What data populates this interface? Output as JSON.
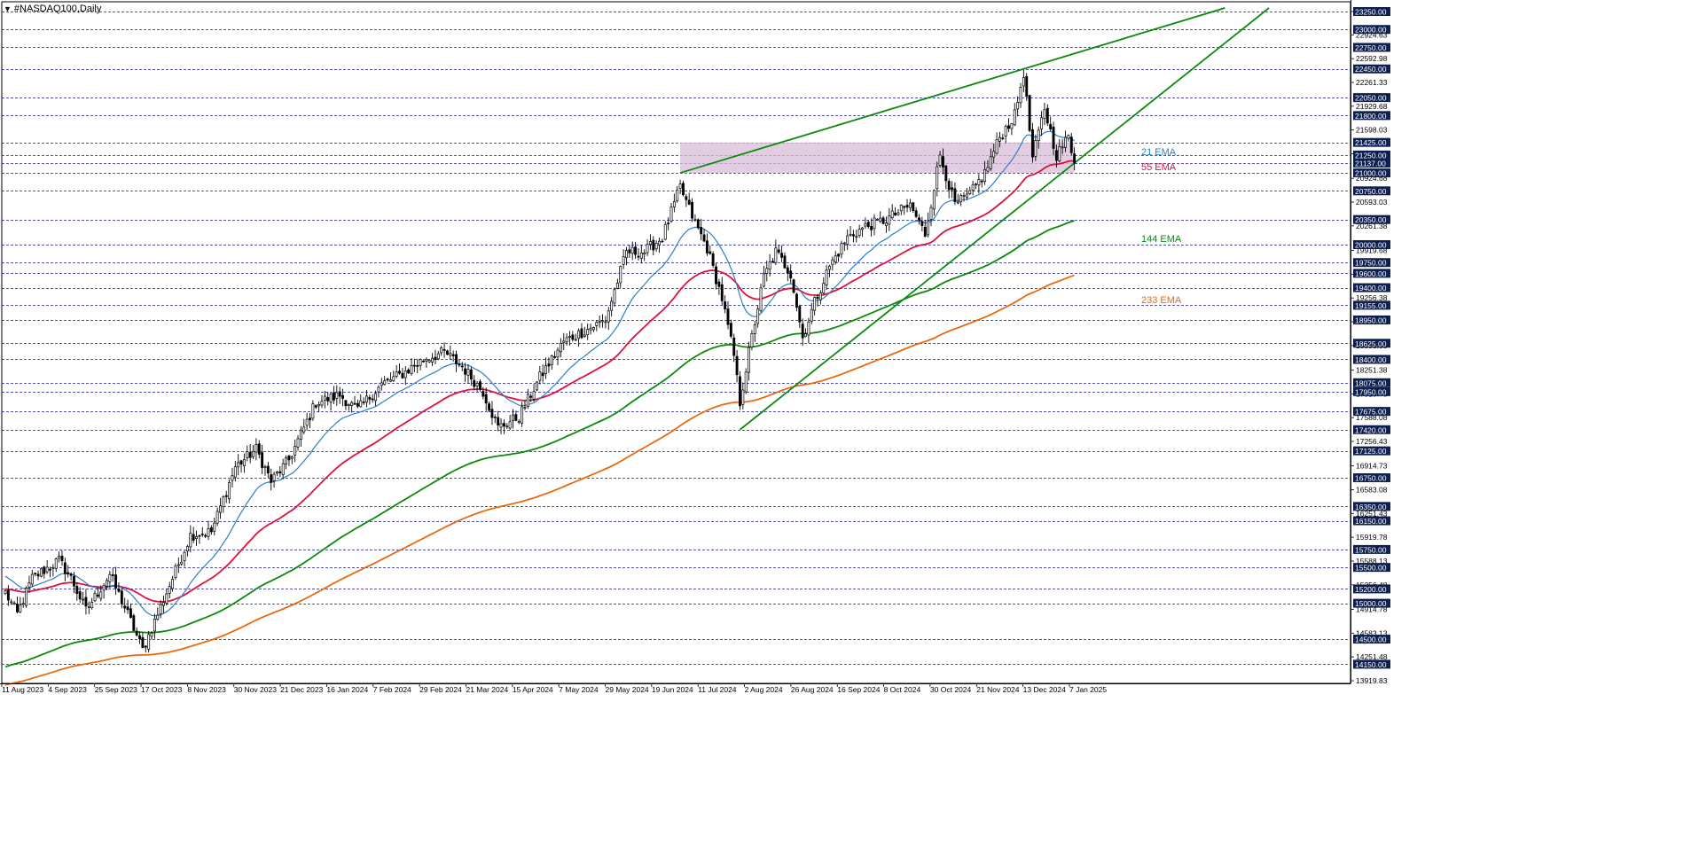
{
  "window": {
    "symbol_title": "#NASDAQ100,Daily"
  },
  "colors": {
    "background": "#ffffff",
    "candle": "#000000",
    "grid": "#1a1a8c",
    "ema21": "#2f7ec7",
    "ema55": "#e0103c",
    "ema144": "#0a8a0a",
    "ema233": "#e86a10",
    "trendline": "#0a8a0a",
    "zone": "#d8bcd8",
    "price_tag_bg": "#0d1f4f",
    "price_tag_text": "#ffffff"
  },
  "chart_data": {
    "type": "candlestick",
    "title": "#NASDAQ100,Daily",
    "ylim": [
      13919.83,
      23250
    ],
    "x_tick_labels": [
      "11 Aug 2023",
      "4 Sep 2023",
      "25 Sep 2023",
      "17 Oct 2023",
      "8 Nov 2023",
      "30 Nov 2023",
      "21 Dec 2023",
      "16 Jan 2024",
      "7 Feb 2024",
      "29 Feb 2024",
      "21 Mar 2024",
      "15 Apr 2024",
      "7 May 2024",
      "29 May 2024",
      "19 Jun 2024",
      "11 Jul 2024",
      "2 Aug 2024",
      "26 Aug 2024",
      "16 Sep 2024",
      "8 Oct 2024",
      "30 Oct 2024",
      "21 Nov 2024",
      "13 Dec 2024",
      "7 Jan 2025"
    ],
    "price_scale_labels": [
      23250.0,
      22924.63,
      22592.98,
      22261.33,
      21929.68,
      21598.03,
      21266.38,
      20924.68,
      20593.03,
      20261.38,
      19919.68,
      19588.03,
      19256.38,
      18924.73,
      18593.08,
      18251.38,
      17919.73,
      17588.08,
      17256.43,
      16914.73,
      16583.08,
      16251.43,
      15919.78,
      15588.13,
      15256.48,
      14914.78,
      14583.13,
      14251.48,
      13919.83
    ],
    "levels": [
      23250.0,
      23000.0,
      22750.0,
      22450.0,
      22050.0,
      21800.0,
      21425.0,
      21250.0,
      21137.0,
      21000.0,
      20750.0,
      20350.0,
      20000.0,
      19750.0,
      19600.0,
      19400.0,
      19155.0,
      18950.0,
      18625.0,
      18400.0,
      18075.0,
      17950.0,
      17675.0,
      17420.0,
      17125.0,
      16750.0,
      16350.0,
      16150.0,
      15750.0,
      15500.0,
      15200.0,
      15000.0,
      14500.0,
      14150.0
    ],
    "price_waypoints": [
      {
        "i": 0,
        "p": 15150
      },
      {
        "i": 4,
        "p": 14850
      },
      {
        "i": 9,
        "p": 15350
      },
      {
        "i": 18,
        "p": 15600
      },
      {
        "i": 22,
        "p": 15350
      },
      {
        "i": 27,
        "p": 14900
      },
      {
        "i": 35,
        "p": 15400
      },
      {
        "i": 41,
        "p": 14850
      },
      {
        "i": 46,
        "p": 14350
      },
      {
        "i": 50,
        "p": 14750
      },
      {
        "i": 55,
        "p": 15250
      },
      {
        "i": 62,
        "p": 15950
      },
      {
        "i": 69,
        "p": 16000
      },
      {
        "i": 77,
        "p": 16900
      },
      {
        "i": 84,
        "p": 17150
      },
      {
        "i": 89,
        "p": 16700
      },
      {
        "i": 95,
        "p": 17000
      },
      {
        "i": 104,
        "p": 17800
      },
      {
        "i": 112,
        "p": 17900
      },
      {
        "i": 118,
        "p": 17700
      },
      {
        "i": 126,
        "p": 18050
      },
      {
        "i": 133,
        "p": 18200
      },
      {
        "i": 140,
        "p": 18400
      },
      {
        "i": 147,
        "p": 18500
      },
      {
        "i": 153,
        "p": 18300
      },
      {
        "i": 160,
        "p": 17950
      },
      {
        "i": 165,
        "p": 17450
      },
      {
        "i": 172,
        "p": 17600
      },
      {
        "i": 179,
        "p": 18150
      },
      {
        "i": 187,
        "p": 18650
      },
      {
        "i": 194,
        "p": 18800
      },
      {
        "i": 201,
        "p": 18950
      },
      {
        "i": 208,
        "p": 19900
      },
      {
        "i": 214,
        "p": 19900
      },
      {
        "i": 220,
        "p": 20100
      },
      {
        "i": 226,
        "p": 20800
      },
      {
        "i": 230,
        "p": 20400
      },
      {
        "i": 235,
        "p": 19950
      },
      {
        "i": 240,
        "p": 19250
      },
      {
        "i": 244,
        "p": 18450
      },
      {
        "i": 246,
        "p": 17800
      },
      {
        "i": 249,
        "p": 18500
      },
      {
        "i": 254,
        "p": 19550
      },
      {
        "i": 258,
        "p": 19900
      },
      {
        "i": 263,
        "p": 19600
      },
      {
        "i": 267,
        "p": 18700
      },
      {
        "i": 271,
        "p": 19200
      },
      {
        "i": 276,
        "p": 19700
      },
      {
        "i": 282,
        "p": 20100
      },
      {
        "i": 288,
        "p": 20250
      },
      {
        "i": 295,
        "p": 20350
      },
      {
        "i": 303,
        "p": 20550
      },
      {
        "i": 308,
        "p": 20150
      },
      {
        "i": 313,
        "p": 21250
      },
      {
        "i": 318,
        "p": 20550
      },
      {
        "i": 323,
        "p": 20700
      },
      {
        "i": 328,
        "p": 21000
      },
      {
        "i": 333,
        "p": 21500
      },
      {
        "i": 338,
        "p": 21800
      },
      {
        "i": 341,
        "p": 22400
      },
      {
        "i": 344,
        "p": 21200
      },
      {
        "i": 348,
        "p": 21900
      },
      {
        "i": 352,
        "p": 21250
      },
      {
        "i": 356,
        "p": 21500
      },
      {
        "i": 358,
        "p": 21137
      }
    ],
    "series": [
      {
        "name": "21 EMA",
        "period": 21,
        "color": "#2f7ec7"
      },
      {
        "name": "55 EMA",
        "period": 55,
        "color": "#e0103c"
      },
      {
        "name": "144 EMA",
        "period": 144,
        "color": "#0a8a0a"
      },
      {
        "name": "233 EMA",
        "period": 233,
        "color": "#e86a10"
      }
    ],
    "ema_start": {
      "ema21": 15400,
      "ema55": 15200,
      "ema144": 14100,
      "ema233": 13850
    },
    "zone": {
      "from_bar": 226,
      "to_bar": 358,
      "low": 21000,
      "high": 21425
    },
    "trendlines": [
      {
        "from": {
          "i": 226,
          "p": 21000
        },
        "to": {
          "i": 341,
          "p": 22450
        },
        "extend_to_p": 23300
      },
      {
        "from": {
          "i": 246,
          "p": 17420
        },
        "to": {
          "i": 358,
          "p": 21137
        },
        "extend_to_p": 23300
      }
    ],
    "grid": true
  },
  "labels": {
    "ema21": "21 EMA",
    "ema55": "55 EMA",
    "ema144": "144 EMA",
    "ema233": "233 EMA"
  }
}
